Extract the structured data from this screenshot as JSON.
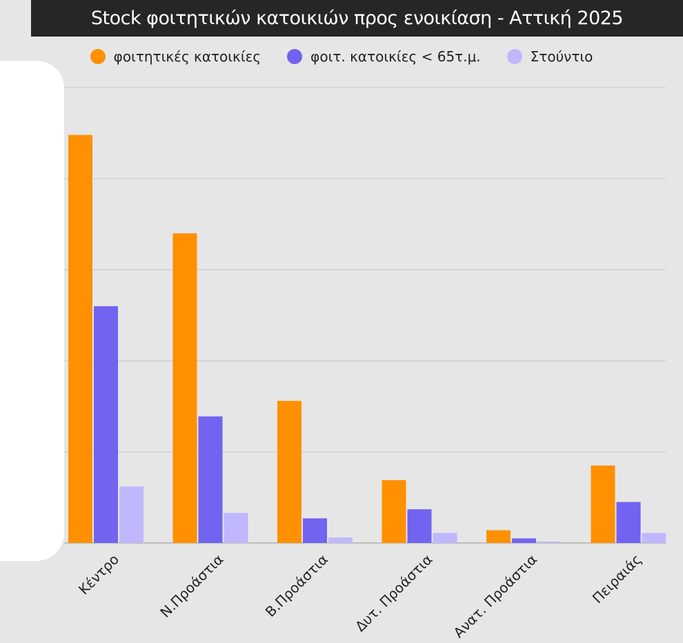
{
  "chart_data": {
    "type": "bar",
    "title": "Stock  φοιτητικών κατοικιών προς ενοικίαση - Αττική 2025",
    "xlabel": "",
    "ylabel": "",
    "categories": [
      "Κέντρο",
      "Ν.Προάστια",
      "Β.Προάστια",
      "Δυτ. Προάστια",
      "Ανατ. Προάστια",
      "Πειραιάς"
    ],
    "series": [
      {
        "name": "φοιτητικές κατοικίες",
        "color": "#ff9000",
        "values": [
          4.48,
          3.4,
          1.56,
          0.69,
          0.14,
          0.85
        ]
      },
      {
        "name": "φοιτ. κατοικίες < 65τ.μ.",
        "color": "#7263f0",
        "values": [
          2.6,
          1.39,
          0.27,
          0.37,
          0.05,
          0.45
        ]
      },
      {
        "name": "Στούντιο",
        "color": "#c0b8ff",
        "values": [
          0.62,
          0.33,
          0.06,
          0.11,
          0.015,
          0.11
        ]
      }
    ],
    "ylim": [
      0,
      5
    ],
    "y_tick_labels_visible": false,
    "grid": true,
    "legend_position": "top"
  }
}
